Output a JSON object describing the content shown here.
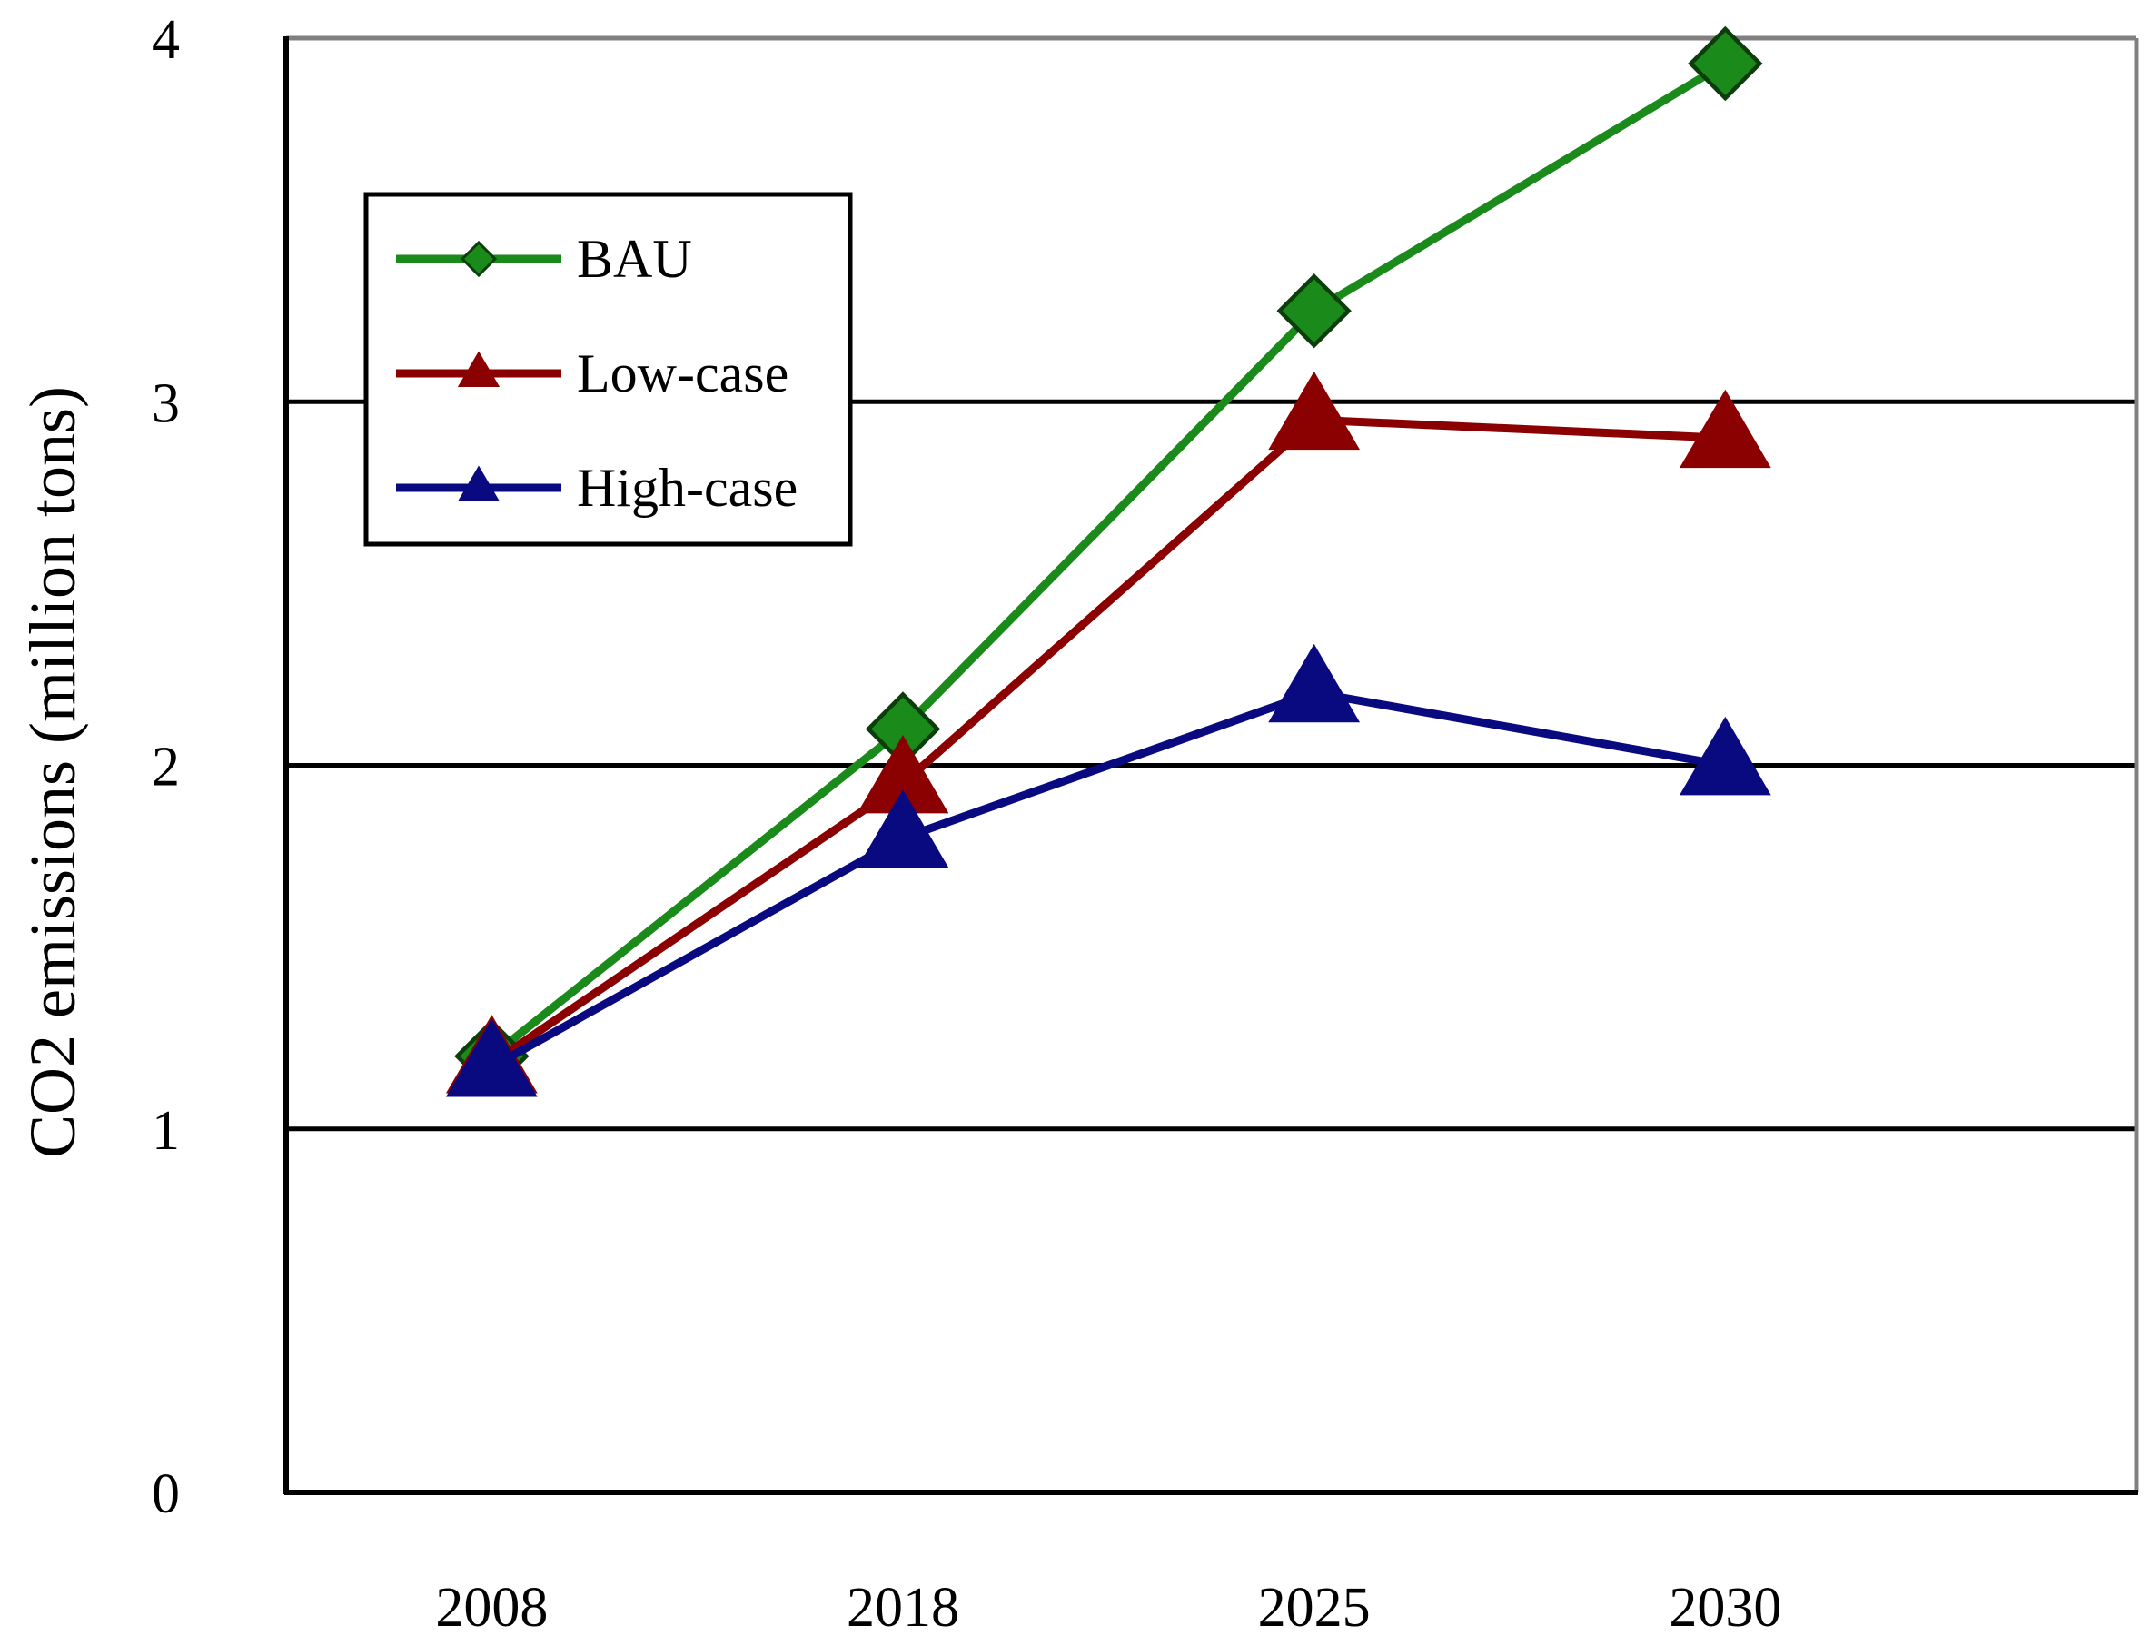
{
  "chart_data": {
    "type": "line",
    "title": "",
    "xlabel": "",
    "ylabel": "CO2 emissions (million  tons)",
    "categories": [
      "2008",
      "2018",
      "2025",
      "2030"
    ],
    "ylim": [
      0,
      4
    ],
    "yticks": [
      "0",
      "1",
      "2",
      "3",
      "4"
    ],
    "grid": true,
    "legend_position": "top-left",
    "series": [
      {
        "name": "BAU",
        "values": [
          1.2,
          2.1,
          3.25,
          3.93
        ],
        "color": "#1a8a1a",
        "marker": "diamond"
      },
      {
        "name": "Low-case",
        "values": [
          1.18,
          1.95,
          2.95,
          2.9
        ],
        "color": "#8b0000",
        "marker": "triangle"
      },
      {
        "name": "High-case",
        "values": [
          1.17,
          1.8,
          2.2,
          2.0
        ],
        "color": "#0a0a80",
        "marker": "triangle"
      }
    ]
  }
}
